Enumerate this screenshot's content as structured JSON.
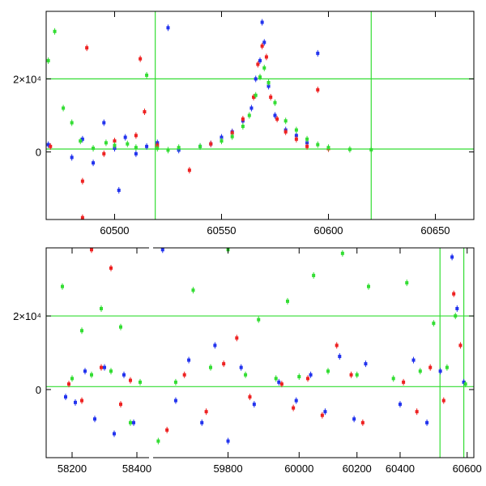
{
  "chart_data": [
    {
      "type": "scatter",
      "title": "",
      "xlabel": "",
      "ylabel": "",
      "xlim": [
        60468,
        60668
      ],
      "ylim": [
        -18500,
        38500
      ],
      "x_ticks": [
        60500,
        60550,
        60600,
        60650
      ],
      "x_tick_labels": [
        "60500",
        "60550",
        "60600",
        "60650"
      ],
      "y_ticks": [
        0,
        20000
      ],
      "y_tick_labels": [
        "0",
        "2×10⁴"
      ],
      "reference_lines": {
        "horizontal": [
          20000,
          800
        ],
        "vertical": [
          60519,
          60620
        ],
        "color": "#33dd33"
      },
      "series": [
        {
          "color": "#2233ee",
          "points": [
            [
              60469,
              2000
            ],
            [
              60480,
              -1500
            ],
            [
              60485,
              3500
            ],
            [
              60490,
              -3000
            ],
            [
              60495,
              8000
            ],
            [
              60500,
              1000
            ],
            [
              60505,
              4000
            ],
            [
              60510,
              -500
            ],
            [
              60515,
              1500
            ],
            [
              60520,
              2500
            ],
            [
              60525,
              34000
            ],
            [
              60530,
              500
            ],
            [
              60540,
              1500
            ],
            [
              60545,
              2200
            ],
            [
              60550,
              4000
            ],
            [
              60555,
              5500
            ],
            [
              60560,
              8500
            ],
            [
              60564,
              12000
            ],
            [
              60566,
              20000
            ],
            [
              60568,
              25000
            ],
            [
              60569,
              35500
            ],
            [
              60570,
              30000
            ],
            [
              60572,
              18000
            ],
            [
              60575,
              10000
            ],
            [
              60580,
              6000
            ],
            [
              60585,
              4500
            ],
            [
              60590,
              2500
            ],
            [
              60595,
              27000
            ],
            [
              60600,
              1000
            ],
            [
              60502,
              -10500
            ]
          ]
        },
        {
          "color": "#ee2222",
          "points": [
            [
              60470,
              1500
            ],
            [
              60485,
              -8000
            ],
            [
              60487,
              28500
            ],
            [
              60495,
              -500
            ],
            [
              60500,
              3000
            ],
            [
              60510,
              4500
            ],
            [
              60512,
              25500
            ],
            [
              60514,
              11000
            ],
            [
              60520,
              1800
            ],
            [
              60535,
              -5000
            ],
            [
              60545,
              2200
            ],
            [
              60555,
              5200
            ],
            [
              60560,
              9000
            ],
            [
              60565,
              15000
            ],
            [
              60567,
              24000
            ],
            [
              60569,
              29000
            ],
            [
              60571,
              26000
            ],
            [
              60573,
              15000
            ],
            [
              60576,
              9000
            ],
            [
              60580,
              5500
            ],
            [
              60585,
              3500
            ],
            [
              60590,
              1500
            ],
            [
              60595,
              17000
            ],
            [
              60600,
              900
            ],
            [
              60485,
              -18000
            ]
          ]
        },
        {
          "color": "#33dd33",
          "points": [
            [
              60469,
              25000
            ],
            [
              60472,
              33000
            ],
            [
              60476,
              12000
            ],
            [
              60480,
              8000
            ],
            [
              60484,
              3000
            ],
            [
              60490,
              1000
            ],
            [
              60496,
              2500
            ],
            [
              60500,
              1800
            ],
            [
              60506,
              2200
            ],
            [
              60510,
              1200
            ],
            [
              60515,
              21000
            ],
            [
              60520,
              1000
            ],
            [
              60525,
              500
            ],
            [
              60530,
              1200
            ],
            [
              60540,
              1500
            ],
            [
              60550,
              3000
            ],
            [
              60555,
              4200
            ],
            [
              60560,
              7000
            ],
            [
              60563,
              10000
            ],
            [
              60566,
              15500
            ],
            [
              60568,
              20500
            ],
            [
              60570,
              23000
            ],
            [
              60572,
              19000
            ],
            [
              60575,
              13500
            ],
            [
              60580,
              8500
            ],
            [
              60585,
              6000
            ],
            [
              60590,
              3500
            ],
            [
              60595,
              2000
            ],
            [
              60600,
              1200
            ],
            [
              60610,
              700
            ],
            [
              60620,
              600
            ]
          ]
        }
      ]
    },
    {
      "type": "scatter",
      "title": "",
      "xlabel": "",
      "ylabel": "",
      "ylim": [
        -18500,
        38500
      ],
      "axis_breaks": true,
      "segments": [
        {
          "xlim": [
            58120,
            58435
          ],
          "x_ticks": [
            58200,
            58400
          ],
          "x_tick_labels": [
            "58200",
            "58400"
          ]
        },
        {
          "xlim": [
            59630,
            59890
          ],
          "x_ticks": [
            59800
          ],
          "x_tick_labels": [
            "59800"
          ]
        },
        {
          "xlim": [
            59890,
            60268
          ],
          "x_ticks": [
            60000,
            60200
          ],
          "x_tick_labels": [
            "60000",
            "60200"
          ]
        },
        {
          "xlim": [
            60330,
            60620
          ],
          "x_ticks": [
            60400,
            60600
          ],
          "x_tick_labels": [
            "60400",
            "60600"
          ]
        }
      ],
      "y_ticks": [
        0,
        20000
      ],
      "y_tick_labels": [
        "0",
        "2×10⁴"
      ],
      "reference_lines": {
        "horizontal": [
          20000,
          800
        ],
        "vertical": [
          60519,
          60590
        ],
        "color": "#33dd33"
      },
      "series": [
        {
          "color": "#2233ee",
          "points": [
            [
              58180,
              -2000
            ],
            [
              58210,
              -3500
            ],
            [
              58240,
              5000
            ],
            [
              58270,
              -8000
            ],
            [
              58300,
              6000
            ],
            [
              58330,
              -12000
            ],
            [
              58360,
              4000
            ],
            [
              58390,
              -9000
            ],
            [
              59650,
              38000
            ],
            [
              59680,
              -3000
            ],
            [
              59710,
              8000
            ],
            [
              59740,
              -9000
            ],
            [
              59770,
              12000
            ],
            [
              59800,
              -14000
            ],
            [
              59830,
              6000
            ],
            [
              59860,
              -4000
            ],
            [
              59930,
              2000
            ],
            [
              59990,
              -3000
            ],
            [
              60040,
              4000
            ],
            [
              60090,
              -6000
            ],
            [
              60140,
              9000
            ],
            [
              60190,
              -8000
            ],
            [
              60230,
              7000
            ],
            [
              60400,
              -4000
            ],
            [
              60440,
              8000
            ],
            [
              60480,
              -9000
            ],
            [
              60520,
              5000
            ],
            [
              60555,
              36000
            ],
            [
              60570,
              22000
            ],
            [
              60590,
              2000
            ]
          ]
        },
        {
          "color": "#ee2222",
          "points": [
            [
              58190,
              1500
            ],
            [
              58230,
              -3000
            ],
            [
              58260,
              38000
            ],
            [
              58290,
              6000
            ],
            [
              58320,
              33000
            ],
            [
              58350,
              -4000
            ],
            [
              58380,
              2500
            ],
            [
              59660,
              -11000
            ],
            [
              59700,
              4000
            ],
            [
              59750,
              -6000
            ],
            [
              59790,
              7000
            ],
            [
              59820,
              14000
            ],
            [
              59850,
              -2000
            ],
            [
              59940,
              1500
            ],
            [
              59980,
              -5000
            ],
            [
              60030,
              3000
            ],
            [
              60080,
              -7000
            ],
            [
              60130,
              12000
            ],
            [
              60180,
              4000
            ],
            [
              60220,
              -9000
            ],
            [
              60410,
              2000
            ],
            [
              60450,
              -6000
            ],
            [
              60490,
              6000
            ],
            [
              60530,
              -3000
            ],
            [
              60560,
              26000
            ],
            [
              60580,
              12000
            ]
          ]
        },
        {
          "color": "#33dd33",
          "points": [
            [
              58170,
              28000
            ],
            [
              58200,
              3000
            ],
            [
              58230,
              16000
            ],
            [
              58260,
              4000
            ],
            [
              58290,
              22000
            ],
            [
              58320,
              5000
            ],
            [
              58350,
              17000
            ],
            [
              58380,
              -9000
            ],
            [
              58410,
              2000
            ],
            [
              59640,
              -14000
            ],
            [
              59680,
              2000
            ],
            [
              59720,
              27000
            ],
            [
              59760,
              6000
            ],
            [
              59800,
              38000
            ],
            [
              59840,
              4000
            ],
            [
              59870,
              19000
            ],
            [
              59920,
              3000
            ],
            [
              59960,
              24000
            ],
            [
              60000,
              3500
            ],
            [
              60050,
              31000
            ],
            [
              60100,
              5000
            ],
            [
              60150,
              37000
            ],
            [
              60200,
              4000
            ],
            [
              60240,
              28000
            ],
            [
              60380,
              3000
            ],
            [
              60420,
              29000
            ],
            [
              60460,
              5000
            ],
            [
              60500,
              18000
            ],
            [
              60540,
              6000
            ],
            [
              60565,
              20000
            ],
            [
              60595,
              1500
            ]
          ]
        }
      ]
    }
  ]
}
